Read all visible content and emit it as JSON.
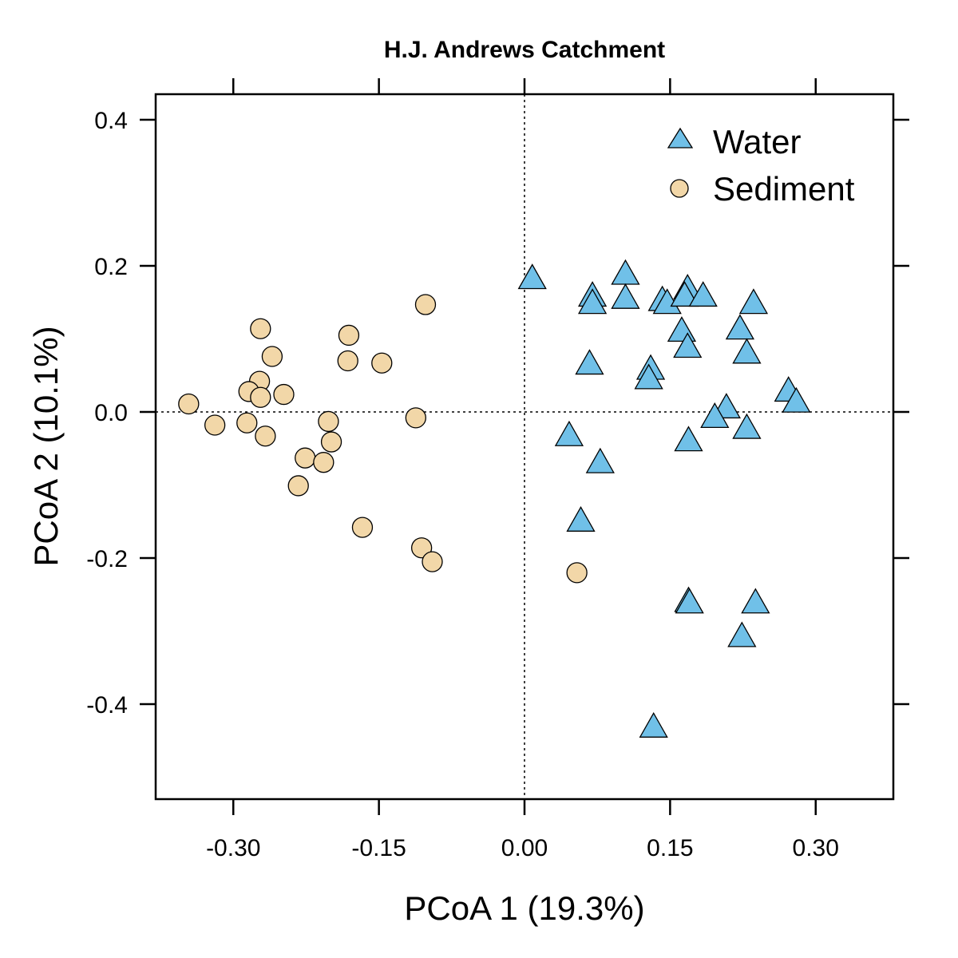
{
  "colors": {
    "water_fill": "#70C0E8",
    "sediment_fill": "#F2D7A8",
    "marker_stroke": "#000000",
    "frame": "#000000"
  },
  "chart_data": {
    "type": "scatter",
    "title": "H.J. Andrews Catchment",
    "xlabel": "PCoA 1 (19.3%)",
    "ylabel": "PCoA 2 (10.1%)",
    "xlim": [
      -0.38,
      0.38
    ],
    "ylim": [
      -0.53,
      0.435
    ],
    "x_ticks": [
      -0.3,
      -0.15,
      0.0,
      0.15,
      0.3
    ],
    "x_tick_labels": [
      "-0.30",
      "-0.15",
      "0.00",
      "0.15",
      "0.30"
    ],
    "y_ticks": [
      -0.4,
      -0.2,
      0.0,
      0.2,
      0.4
    ],
    "y_tick_labels": [
      "-0.4",
      "-0.2",
      "0.0",
      "0.2",
      "0.4"
    ],
    "reference_lines": {
      "x": 0.0,
      "y": 0.0,
      "style": "dotted"
    },
    "grid": false,
    "legend_position": "top-right",
    "series": [
      {
        "name": "Water",
        "marker": "triangle",
        "points": [
          [
            0.008,
            0.182
          ],
          [
            0.07,
            0.158
          ],
          [
            0.07,
            0.148
          ],
          [
            0.104,
            0.188
          ],
          [
            0.104,
            0.155
          ],
          [
            0.142,
            0.152
          ],
          [
            0.147,
            0.148
          ],
          [
            0.168,
            0.168
          ],
          [
            0.165,
            0.158
          ],
          [
            0.184,
            0.158
          ],
          [
            0.236,
            0.148
          ],
          [
            0.222,
            0.113
          ],
          [
            0.162,
            0.11
          ],
          [
            0.168,
            0.088
          ],
          [
            0.229,
            0.08
          ],
          [
            0.067,
            0.065
          ],
          [
            0.13,
            0.058
          ],
          [
            0.128,
            0.045
          ],
          [
            0.272,
            0.028
          ],
          [
            0.28,
            0.013
          ],
          [
            0.208,
            0.005
          ],
          [
            0.196,
            -0.008
          ],
          [
            0.229,
            -0.023
          ],
          [
            0.046,
            -0.033
          ],
          [
            0.169,
            -0.04
          ],
          [
            0.078,
            -0.07
          ],
          [
            0.058,
            -0.15
          ],
          [
            0.169,
            -0.26
          ],
          [
            0.17,
            -0.262
          ],
          [
            0.238,
            -0.262
          ],
          [
            0.224,
            -0.308
          ],
          [
            0.133,
            -0.432
          ]
        ]
      },
      {
        "name": "Sediment",
        "marker": "circle",
        "points": [
          [
            -0.102,
            0.147
          ],
          [
            -0.272,
            0.114
          ],
          [
            -0.181,
            0.105
          ],
          [
            -0.26,
            0.076
          ],
          [
            -0.182,
            0.07
          ],
          [
            -0.147,
            0.067
          ],
          [
            -0.273,
            0.042
          ],
          [
            -0.284,
            0.028
          ],
          [
            -0.272,
            0.02
          ],
          [
            -0.248,
            0.024
          ],
          [
            -0.346,
            0.011
          ],
          [
            -0.319,
            -0.018
          ],
          [
            -0.286,
            -0.015
          ],
          [
            -0.202,
            -0.013
          ],
          [
            -0.112,
            -0.008
          ],
          [
            -0.267,
            -0.033
          ],
          [
            -0.199,
            -0.041
          ],
          [
            -0.226,
            -0.063
          ],
          [
            -0.207,
            -0.069
          ],
          [
            -0.233,
            -0.101
          ],
          [
            -0.167,
            -0.158
          ],
          [
            -0.106,
            -0.186
          ],
          [
            -0.095,
            -0.205
          ],
          [
            0.054,
            -0.22
          ]
        ]
      }
    ]
  }
}
